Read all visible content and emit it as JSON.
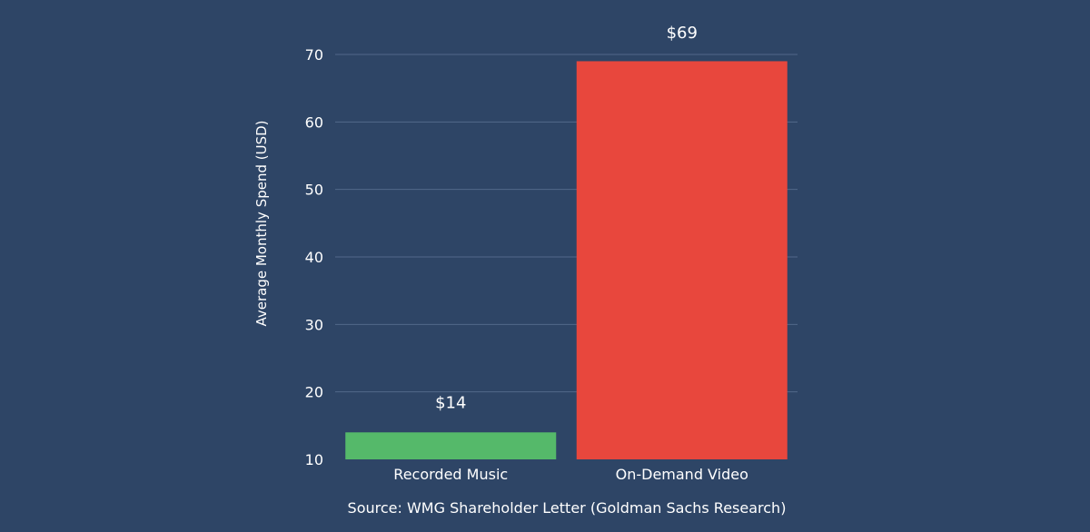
{
  "chart_data": {
    "type": "bar",
    "categories": [
      "Recorded Music",
      "On-Demand Video"
    ],
    "values": [
      14,
      69
    ],
    "data_labels": [
      "$14",
      "$69"
    ],
    "ylabel": "Average Monthly Spend (USD)",
    "xlabel": "",
    "ylim": [
      10,
      70
    ],
    "yticks": [
      10,
      20,
      30,
      40,
      50,
      60,
      70
    ],
    "grid": true,
    "legend": "none",
    "colors": [
      "#55b96a",
      "#e8473d"
    ],
    "source": "Source: WMG Shareholder Letter (Goldman Sachs Research)"
  },
  "theme": {
    "background": "#2e4566",
    "gridline": "#52688a",
    "text": "#ffffff"
  }
}
